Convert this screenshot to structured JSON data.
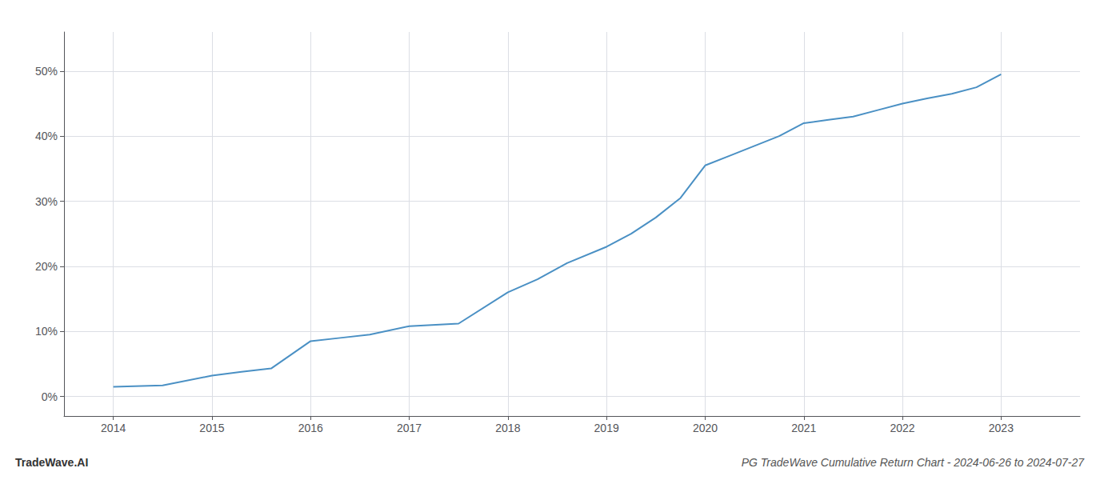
{
  "chart_data": {
    "type": "line",
    "title": "PG TradeWave Cumulative Return Chart - 2024-06-26 to 2024-07-27",
    "annotations": [
      "TradeWave.AI"
    ],
    "x": [
      2014.0,
      2014.5,
      2015.0,
      2015.3,
      2015.6,
      2016.0,
      2016.3,
      2016.6,
      2017.0,
      2017.5,
      2018.0,
      2018.3,
      2018.6,
      2019.0,
      2019.25,
      2019.5,
      2019.75,
      2020.0,
      2020.25,
      2020.5,
      2020.75,
      2021.0,
      2021.25,
      2021.5,
      2021.75,
      2022.0,
      2022.25,
      2022.5,
      2022.75,
      2023.0
    ],
    "values": [
      1.5,
      1.7,
      3.2,
      3.8,
      4.3,
      8.5,
      9.0,
      9.5,
      10.8,
      11.2,
      16.0,
      18.0,
      20.5,
      23.0,
      25.0,
      27.5,
      30.5,
      35.5,
      37.0,
      38.5,
      40.0,
      42.0,
      42.5,
      43.0,
      44.0,
      45.0,
      45.8,
      46.5,
      47.5,
      49.5
    ],
    "color": "#4a90c4",
    "xlim": [
      2013.5,
      2023.8
    ],
    "xticks": [
      2014,
      2015,
      2016,
      2017,
      2018,
      2019,
      2020,
      2021,
      2022,
      2023
    ],
    "ylim": [
      -3,
      56
    ],
    "yticks": [
      {
        "value": 0,
        "label": "0%"
      },
      {
        "value": 10,
        "label": "10%"
      },
      {
        "value": 20,
        "label": "20%"
      },
      {
        "value": 30,
        "label": "30%"
      },
      {
        "value": 40,
        "label": "40%"
      },
      {
        "value": 50,
        "label": "50%"
      }
    ],
    "grid": true
  }
}
